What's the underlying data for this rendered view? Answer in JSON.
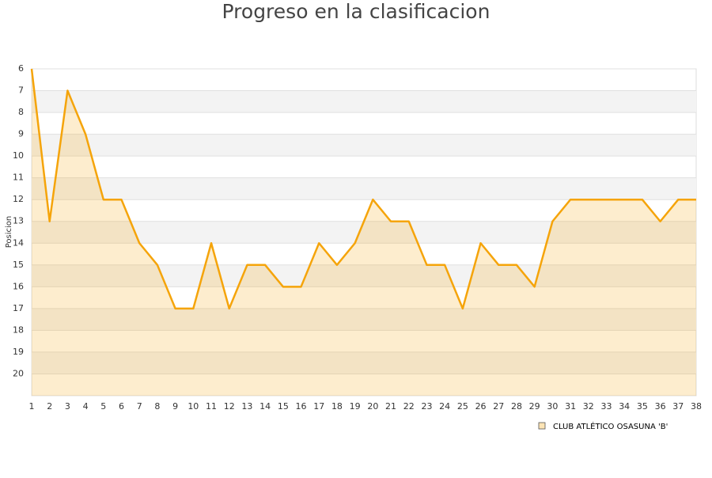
{
  "chart_data": {
    "type": "line",
    "title": "Progreso en la clasificacion",
    "y_label": "Posicion",
    "x": [
      1,
      2,
      3,
      4,
      5,
      6,
      7,
      8,
      9,
      10,
      11,
      12,
      13,
      14,
      15,
      16,
      17,
      18,
      19,
      20,
      21,
      22,
      23,
      24,
      25,
      26,
      27,
      28,
      29,
      30,
      31,
      32,
      33,
      34,
      35,
      36,
      37,
      38
    ],
    "xlim": [
      1,
      38
    ],
    "series": [
      {
        "name": "CLUB ATLÉTICO OSASUNA 'B'",
        "color": "#f5a40a",
        "values": [
          6,
          13,
          7,
          9,
          12,
          12,
          14,
          15,
          17,
          17,
          14,
          17,
          15,
          15,
          16,
          16,
          14,
          15,
          14,
          12,
          13,
          13,
          15,
          15,
          17,
          14,
          15,
          15,
          16,
          13,
          12,
          12,
          12,
          12,
          12,
          13,
          12,
          12
        ]
      }
    ],
    "ylim": [
      6,
      21
    ],
    "y_reversed": true,
    "yticks": [
      6,
      7,
      8,
      9,
      10,
      11,
      12,
      13,
      14,
      15,
      16,
      17,
      18,
      19,
      20
    ],
    "grid": true,
    "area": true,
    "legend": "bottom-right"
  }
}
